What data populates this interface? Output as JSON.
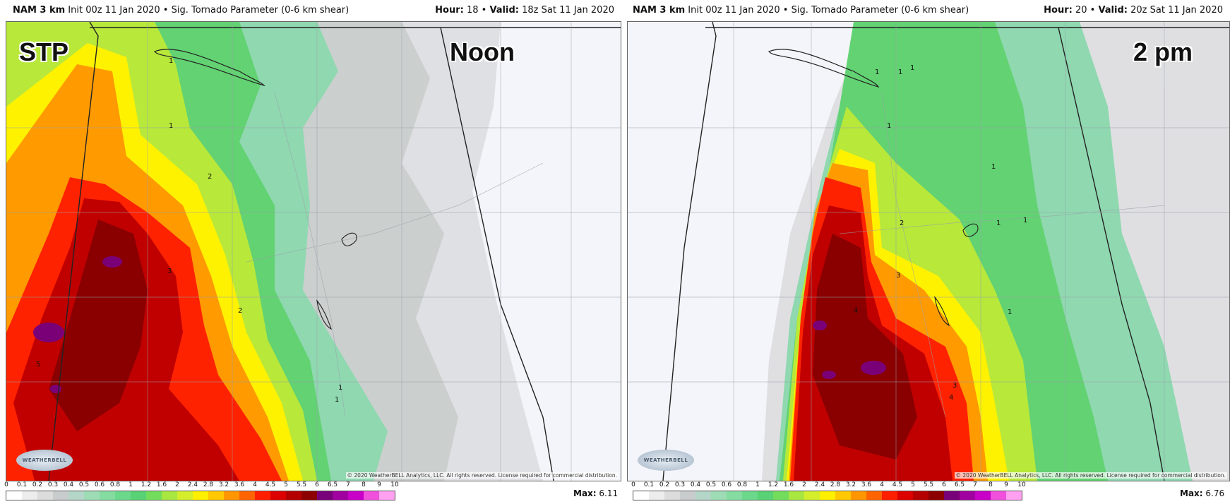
{
  "panels": [
    {
      "header_model": "NAM 3 km",
      "header_init": " Init 00z 11 Jan 2020 • Sig. Tornado Parameter (0-6 km shear)",
      "hour_label": "Hour:",
      "hour_value": " 18 • ",
      "valid_label": "Valid:",
      "valid_value": " 18z Sat 11 Jan 2020",
      "overlay_left": "STP",
      "overlay_right": "Noon",
      "max_label": "Max:",
      "max_value": " 6.11",
      "contour_labels": [
        "1",
        "1",
        "2",
        "3",
        "2",
        "5",
        "1",
        "1"
      ]
    },
    {
      "header_model": "NAM 3 km",
      "header_init": " Init 00z 11 Jan 2020 • Sig. Tornado Parameter (0-6 km shear)",
      "hour_label": "Hour:",
      "hour_value": " 20 • ",
      "valid_label": "Valid:",
      "valid_value": " 20z Sat 11 Jan 2020",
      "overlay_left": "",
      "overlay_right": "2 pm",
      "max_label": "Max:",
      "max_value": " 6.76",
      "contour_labels": [
        "1",
        "1",
        "1",
        "1",
        "1",
        "2",
        "1",
        "1",
        "3",
        "4",
        "1",
        "3",
        "4"
      ]
    }
  ],
  "copyright": "© 2020 WeatherBELL Analytics, LLC. All rights reserved. License required for commercial distribution.",
  "logo_text": "WEATHERBELL",
  "colorbar": {
    "ticks": [
      "0",
      "0.1",
      "0.2",
      "0.3",
      "0.4",
      "0.5",
      "0.6",
      "0.8",
      "1",
      "1.2",
      "1.6",
      "2",
      "2.4",
      "2.8",
      "3.2",
      "3.6",
      "4",
      "4.5",
      "5",
      "5.5",
      "6",
      "6.5",
      "7",
      "8",
      "9",
      "10"
    ],
    "colors": [
      "#ffffff",
      "#ededed",
      "#dcdcdc",
      "#c9cccc",
      "#b4d6c8",
      "#9ddcb4",
      "#84dca0",
      "#6cd88c",
      "#58d274",
      "#74dc5c",
      "#a8e640",
      "#d4ee2c",
      "#fff000",
      "#ffc800",
      "#ff9600",
      "#ff6400",
      "#ff1e00",
      "#dc0000",
      "#b40000",
      "#8c0000",
      "#780078",
      "#a000a0",
      "#c800c8",
      "#f050dc",
      "#ffa0f0"
    ]
  }
}
